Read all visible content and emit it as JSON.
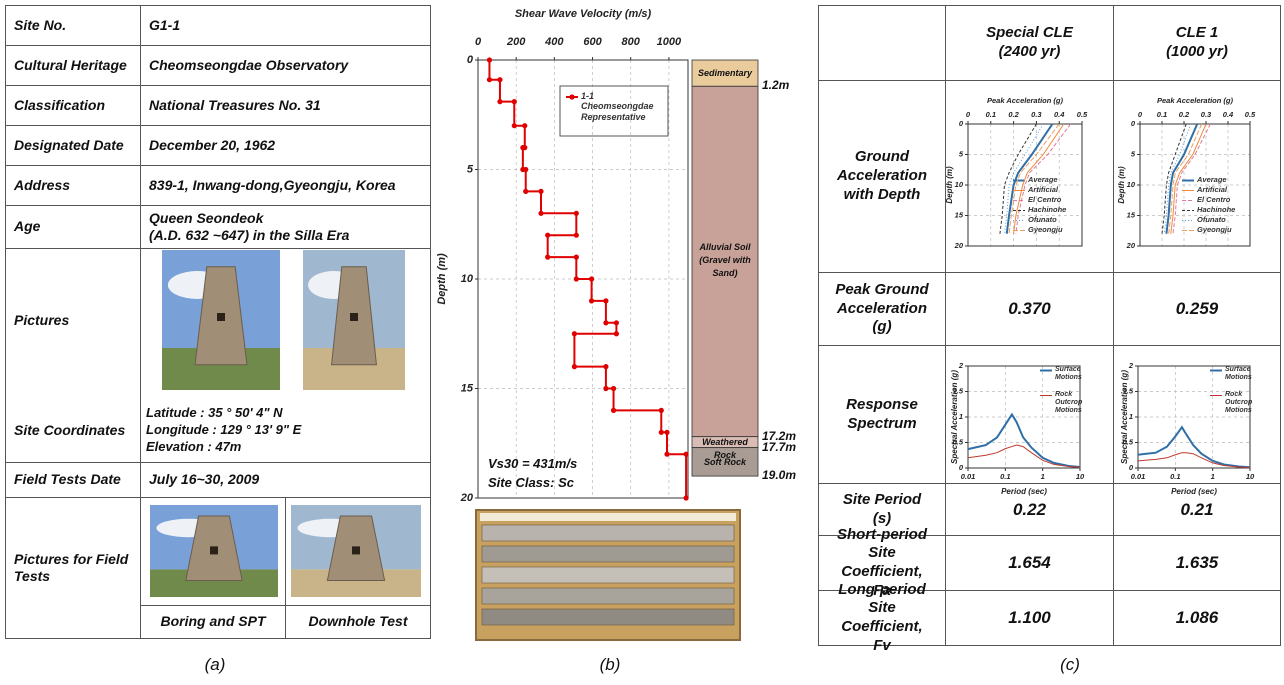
{
  "site_table": {
    "rows": [
      [
        "Site No.",
        "G1-1"
      ],
      [
        "Cultural Heritage",
        "Cheomseongdae Observatory"
      ],
      [
        "Classification",
        "National Treasures No. 31"
      ],
      [
        "Designated Date",
        "December 20, 1962"
      ],
      [
        "Address",
        "839-1, Inwang-dong,Gyeongju, Korea"
      ],
      [
        "Age",
        "Queen Seondeok\n(A.D. 632 ~647) in the Silla Era"
      ]
    ],
    "pictures_label": "Pictures",
    "coordinates_label": "Site Coordinates",
    "coordinates": [
      "Latitude : 35 ° 50' 4\" N",
      "Longitude : 129 ° 13' 9\" E",
      "Elevation : 47m"
    ],
    "field_tests_date": [
      "Field Tests Date",
      "July 16~30, 2009"
    ],
    "field_tests_label": "Pictures for Field Tests",
    "field_tests_captions": [
      "Boring and SPT",
      "Downhole Test"
    ]
  },
  "captions": [
    "(a)",
    "(b)",
    "(c)"
  ],
  "response_table": {
    "headers": [
      "Special CLE\n(2400 yr)",
      "CLE 1\n(1000 yr)"
    ],
    "rows": [
      {
        "label": "Ground Acceleration with Depth"
      },
      {
        "label": "Peak Ground Acceleration (g)",
        "values": [
          "0.370",
          "0.259"
        ]
      },
      {
        "label": "Response Spectrum"
      },
      {
        "label": "Site Period (s)",
        "values": [
          "0.22",
          "0.21"
        ]
      },
      {
        "label": "Short-period Site Coefficient, Fa",
        "values": [
          "1.654",
          "1.635"
        ]
      },
      {
        "label": "Long-period Site Coefficient, Fv",
        "values": [
          "1.100",
          "1.086"
        ]
      }
    ]
  },
  "chart_data": [
    {
      "type": "profile",
      "xlabel": "Shear Wave Velocity (m/s)",
      "ylabel": "Depth (m)",
      "xlim": [
        0,
        1100
      ],
      "xticks": [
        0,
        200,
        400,
        600,
        800,
        1000
      ],
      "ylim": [
        0,
        20
      ],
      "yticks": [
        0,
        5,
        10,
        15,
        20
      ],
      "invert_y": true,
      "x_axis_top": true,
      "grid": true,
      "y": [
        0,
        0.9,
        0.9,
        1.9,
        1.9,
        3,
        3,
        4,
        4,
        5,
        5,
        6,
        6,
        7,
        7,
        8,
        8,
        9,
        9,
        10,
        10,
        11,
        11,
        12,
        12,
        12.5,
        12.5,
        14,
        14,
        15,
        15,
        16,
        16,
        17,
        17,
        18,
        18,
        20
      ],
      "series": [
        {
          "name": "1-1 Cheomseongdae Representative",
          "color": "#e00000",
          "values": [
            60,
            60,
            115,
            115,
            190,
            190,
            245,
            245,
            235,
            235,
            250,
            250,
            330,
            330,
            515,
            515,
            365,
            365,
            515,
            515,
            595,
            595,
            670,
            670,
            725,
            725,
            505,
            505,
            670,
            670,
            710,
            710,
            960,
            960,
            990,
            990,
            1090,
            1090
          ]
        }
      ],
      "annotations": [
        "Vs30 = 431m/s",
        "Site Class: Sc"
      ],
      "layers": [
        {
          "name": "Sedimentary",
          "bottom": 1.2,
          "bottom_label": "1.2m",
          "color": "#e9cb9c"
        },
        {
          "name": "Alluvial Soil (Gravel with Sand)",
          "bottom": 17.2,
          "bottom_label": "17.2m",
          "color": "#c8a299"
        },
        {
          "name": "Weathered Rock",
          "bottom": 17.7,
          "bottom_label": "17.7m",
          "color": "#d9bcb4"
        },
        {
          "name": "Soft Rock",
          "bottom": 19.0,
          "bottom_label": "19.0m",
          "color": "#a99c94"
        }
      ]
    },
    {
      "type": "profile",
      "title": "Peak Acceleration (g)",
      "ylabel": "Depth (m)",
      "xlim": [
        0,
        0.5
      ],
      "xticks": [
        0,
        0.1,
        0.2,
        0.3,
        0.4,
        0.5
      ],
      "ylim": [
        0,
        20
      ],
      "yticks": [
        0,
        5,
        10,
        15,
        20
      ],
      "invert_y": true,
      "x_axis_top": true,
      "grid": true,
      "y": [
        0,
        5,
        8,
        10,
        15,
        18
      ],
      "series": [
        {
          "name": "Average",
          "color": "#2f6fa8",
          "values": [
            0.37,
            0.28,
            0.22,
            0.2,
            0.18,
            0.17
          ]
        },
        {
          "name": "Artificial",
          "color": "#f08a3c",
          "values": [
            0.42,
            0.33,
            0.26,
            0.24,
            0.21,
            0.2
          ]
        },
        {
          "name": "El Centro",
          "color": "#e07a9a",
          "values": [
            0.45,
            0.35,
            0.27,
            0.25,
            0.22,
            0.21
          ]
        },
        {
          "name": "Hachinohe",
          "color": "#333333",
          "values": [
            0.3,
            0.22,
            0.18,
            0.16,
            0.15,
            0.14
          ]
        },
        {
          "name": "Ofunato",
          "color": "#5b9bd5",
          "values": [
            0.33,
            0.25,
            0.2,
            0.18,
            0.17,
            0.16
          ]
        },
        {
          "name": "Gyeongju",
          "color": "#e8a060",
          "values": [
            0.4,
            0.3,
            0.23,
            0.21,
            0.19,
            0.18
          ]
        }
      ]
    },
    {
      "type": "profile",
      "title": "Peak Acceleration (g)",
      "ylabel": "Depth (m)",
      "xlim": [
        0,
        0.5
      ],
      "xticks": [
        0,
        0.1,
        0.2,
        0.3,
        0.4,
        0.5
      ],
      "ylim": [
        0,
        20
      ],
      "yticks": [
        0,
        5,
        10,
        15,
        20
      ],
      "invert_y": true,
      "x_axis_top": true,
      "grid": true,
      "y": [
        0,
        5,
        8,
        10,
        15,
        18
      ],
      "series": [
        {
          "name": "Average",
          "color": "#2f6fa8",
          "values": [
            0.26,
            0.2,
            0.15,
            0.14,
            0.13,
            0.12
          ]
        },
        {
          "name": "Artificial",
          "color": "#f08a3c",
          "values": [
            0.3,
            0.24,
            0.18,
            0.16,
            0.15,
            0.14
          ]
        },
        {
          "name": "El Centro",
          "color": "#e07a9a",
          "values": [
            0.32,
            0.25,
            0.19,
            0.17,
            0.16,
            0.15
          ]
        },
        {
          "name": "Hachinohe",
          "color": "#333333",
          "values": [
            0.21,
            0.16,
            0.13,
            0.12,
            0.11,
            0.1
          ]
        },
        {
          "name": "Ofunato",
          "color": "#5b9bd5",
          "values": [
            0.23,
            0.18,
            0.14,
            0.13,
            0.12,
            0.11
          ]
        },
        {
          "name": "Gyeongju",
          "color": "#e8a060",
          "values": [
            0.28,
            0.22,
            0.16,
            0.15,
            0.14,
            0.13
          ]
        }
      ]
    },
    {
      "type": "line",
      "xlabel": "Period (sec)",
      "ylabel": "Spectral Acceleration (g)",
      "log_x": true,
      "xlim": [
        0.01,
        10
      ],
      "xticks": [
        0.01,
        0.1,
        1,
        10
      ],
      "ylim": [
        0,
        2
      ],
      "yticks": [
        0,
        0.5,
        1,
        1.5,
        2
      ],
      "grid": true,
      "x": [
        0.01,
        0.03,
        0.06,
        0.1,
        0.15,
        0.2,
        0.3,
        0.5,
        1,
        2,
        5,
        10
      ],
      "series": [
        {
          "name": "Surface Motions",
          "color": "#2f6fa8",
          "values": [
            0.37,
            0.45,
            0.6,
            0.85,
            1.05,
            0.9,
            0.6,
            0.4,
            0.2,
            0.1,
            0.04,
            0.02
          ]
        },
        {
          "name": "Rock Outcrop Motions",
          "color": "#c0392b",
          "values": [
            0.2,
            0.25,
            0.3,
            0.38,
            0.42,
            0.45,
            0.42,
            0.3,
            0.15,
            0.07,
            0.03,
            0.015
          ]
        }
      ]
    },
    {
      "type": "line",
      "xlabel": "Period (sec)",
      "ylabel": "Spectral Acceleration (g)",
      "log_x": true,
      "xlim": [
        0.01,
        10
      ],
      "xticks": [
        0.01,
        0.1,
        1,
        10
      ],
      "ylim": [
        0,
        2
      ],
      "yticks": [
        0,
        0.5,
        1,
        1.5,
        2
      ],
      "grid": true,
      "x": [
        0.01,
        0.03,
        0.06,
        0.1,
        0.15,
        0.2,
        0.3,
        0.5,
        1,
        2,
        5,
        10
      ],
      "series": [
        {
          "name": "Surface Motions",
          "color": "#2f6fa8",
          "values": [
            0.26,
            0.3,
            0.42,
            0.62,
            0.8,
            0.65,
            0.45,
            0.28,
            0.14,
            0.07,
            0.03,
            0.015
          ]
        },
        {
          "name": "Rock Outcrop Motions",
          "color": "#c0392b",
          "values": [
            0.14,
            0.17,
            0.2,
            0.26,
            0.3,
            0.3,
            0.28,
            0.2,
            0.1,
            0.05,
            0.02,
            0.01
          ]
        }
      ]
    }
  ]
}
